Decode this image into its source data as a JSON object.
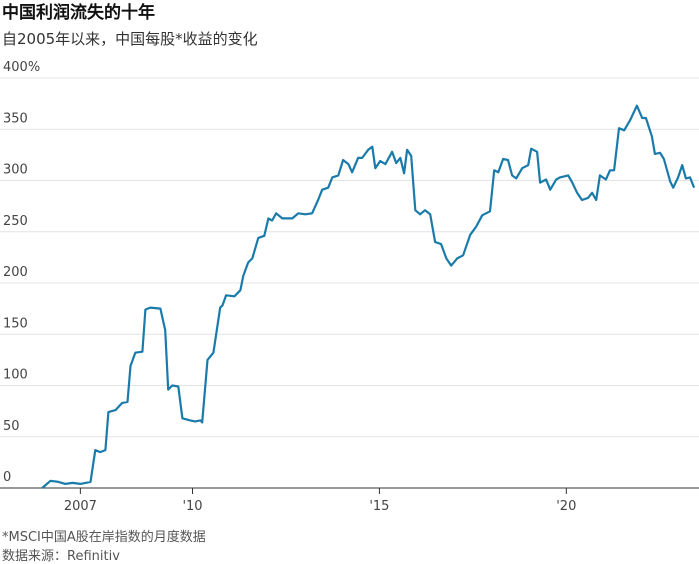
{
  "chart_data": {
    "type": "line",
    "title": "中国利润流失的十年",
    "subtitle": "自2005年以来，中国每股*收益的变化",
    "notes": [
      "*MSCI中国A股在岸指数的月度数据",
      "数据来源：Refinitiv"
    ],
    "x": [
      2005.98,
      2006.2,
      2006.41,
      2006.6,
      2006.79,
      2007.0,
      2007.27,
      2007.4,
      2007.53,
      2007.67,
      2007.75,
      2007.94,
      2008.12,
      2008.26,
      2008.34,
      2008.47,
      2008.66,
      2008.74,
      2008.87,
      2009.14,
      2009.27,
      2009.35,
      2009.46,
      2009.62,
      2009.73,
      2009.94,
      2010.07,
      2010.21,
      2010.26,
      2010.4,
      2010.56,
      2010.74,
      2010.8,
      2010.9,
      2011.12,
      2011.28,
      2011.36,
      2011.49,
      2011.6,
      2011.76,
      2011.92,
      2012.03,
      2012.13,
      2012.24,
      2012.4,
      2012.67,
      2012.83,
      2013.02,
      2013.2,
      2013.36,
      2013.47,
      2013.63,
      2013.74,
      2013.9,
      2014.03,
      2014.17,
      2014.27,
      2014.43,
      2014.54,
      2014.7,
      2014.81,
      2014.89,
      2015.02,
      2015.16,
      2015.34,
      2015.45,
      2015.56,
      2015.66,
      2015.74,
      2015.85,
      2015.96,
      2016.09,
      2016.22,
      2016.36,
      2016.49,
      2016.65,
      2016.79,
      2016.92,
      2017.08,
      2017.24,
      2017.43,
      2017.59,
      2017.75,
      2017.96,
      2018.07,
      2018.18,
      2018.31,
      2018.44,
      2018.55,
      2018.66,
      2018.82,
      2018.98,
      2019.06,
      2019.22,
      2019.3,
      2019.46,
      2019.57,
      2019.73,
      2019.83,
      2020.05,
      2020.16,
      2020.29,
      2020.42,
      2020.58,
      2020.69,
      2020.8,
      2020.9,
      2021.06,
      2021.17,
      2021.28,
      2021.41,
      2021.55,
      2021.71,
      2021.89,
      2022.03,
      2022.13,
      2022.29,
      2022.37,
      2022.51,
      2022.61,
      2022.78,
      2022.86,
      2022.99,
      2023.1,
      2023.2,
      2023.31,
      2023.42
    ],
    "series": [
      {
        "name": "每股收益",
        "color": "#1a7bab",
        "values": [
          0,
          7,
          6,
          4,
          5,
          4,
          6,
          37,
          35,
          37,
          74,
          76,
          83,
          84,
          119,
          132,
          133,
          174,
          176,
          175,
          154,
          96,
          100,
          99,
          68,
          66,
          65,
          66,
          64,
          125,
          132,
          176,
          178,
          188,
          187,
          193,
          207,
          220,
          224,
          244,
          246,
          263,
          261,
          268,
          263,
          263,
          268,
          267,
          268,
          281,
          291,
          293,
          303,
          305,
          320,
          316,
          308,
          322,
          322,
          330,
          333,
          312,
          319,
          316,
          328,
          317,
          322,
          307,
          330,
          324,
          271,
          267,
          271,
          267,
          240,
          238,
          224,
          217,
          224,
          227,
          247,
          255,
          266,
          270,
          310,
          308,
          321,
          320,
          305,
          302,
          312,
          315,
          331,
          328,
          298,
          301,
          291,
          301,
          303,
          305,
          298,
          288,
          281,
          283,
          288,
          281,
          305,
          301,
          310,
          310,
          351,
          349,
          359,
          373,
          361,
          361,
          343,
          326,
          327,
          321,
          299,
          293,
          303,
          315,
          302,
          303,
          293
        ]
      }
    ],
    "xlim": [
      2004.85,
      2023.55
    ],
    "xticks": [
      {
        "value": 2007,
        "label": "2007"
      },
      {
        "value": 2010,
        "label": "'10"
      },
      {
        "value": 2015,
        "label": "'15"
      },
      {
        "value": 2020,
        "label": "'20"
      }
    ],
    "ylim": [
      0,
      400
    ],
    "yticks": [
      0,
      50,
      100,
      150,
      200,
      250,
      300,
      350,
      {
        "value": 400,
        "label": "400%"
      }
    ],
    "grid": true
  }
}
